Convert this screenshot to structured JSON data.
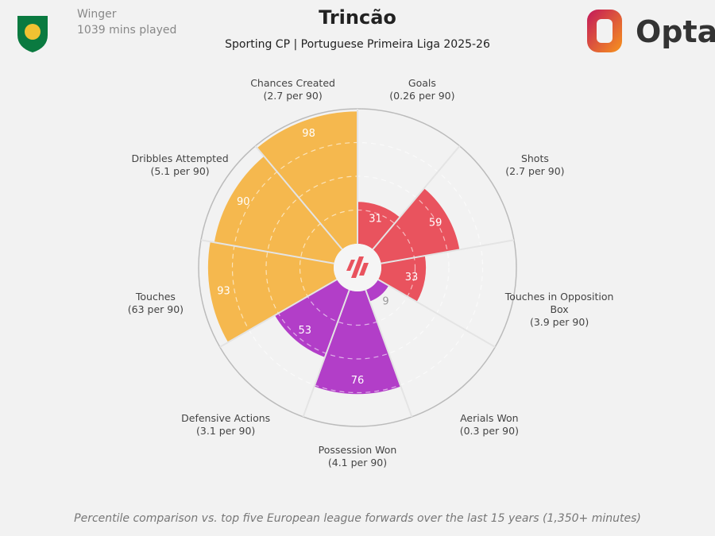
{
  "header": {
    "role": "Winger",
    "minutes": "1039 mins played",
    "title": "Trincão",
    "subtitle": "Sporting CP | Portuguese Primeira Liga 2025-26",
    "brand": "Opta"
  },
  "footer": "Percentile comparison vs. top five European league forwards over the last 15 years (1,350+ minutes)",
  "colors": {
    "attacking": "#e9535e",
    "defending": "#b23ec8",
    "possession": "#f5b84e",
    "background": "#f2f2f2"
  },
  "chart_data": {
    "type": "pizza",
    "range": [
      0,
      100
    ],
    "categories": [
      "Goals",
      "Shots",
      "Touches in Opposition Box",
      "Aerials Won",
      "Possession Won",
      "Defensive Actions",
      "Touches",
      "Dribbles Attempted",
      "Chances Created"
    ],
    "per90": [
      "(0.26 per 90)",
      "(2.7 per 90)",
      "(3.9 per 90)",
      "(0.3 per 90)",
      "(4.1 per 90)",
      "(3.1 per 90)",
      "(63 per 90)",
      "(5.1 per 90)",
      "(2.7 per 90)"
    ],
    "values": [
      31,
      59,
      33,
      9,
      76,
      53,
      93,
      90,
      98
    ],
    "groups": [
      "attacking",
      "attacking",
      "attacking",
      "defending",
      "defending",
      "defending",
      "possession",
      "possession",
      "possession"
    ]
  }
}
